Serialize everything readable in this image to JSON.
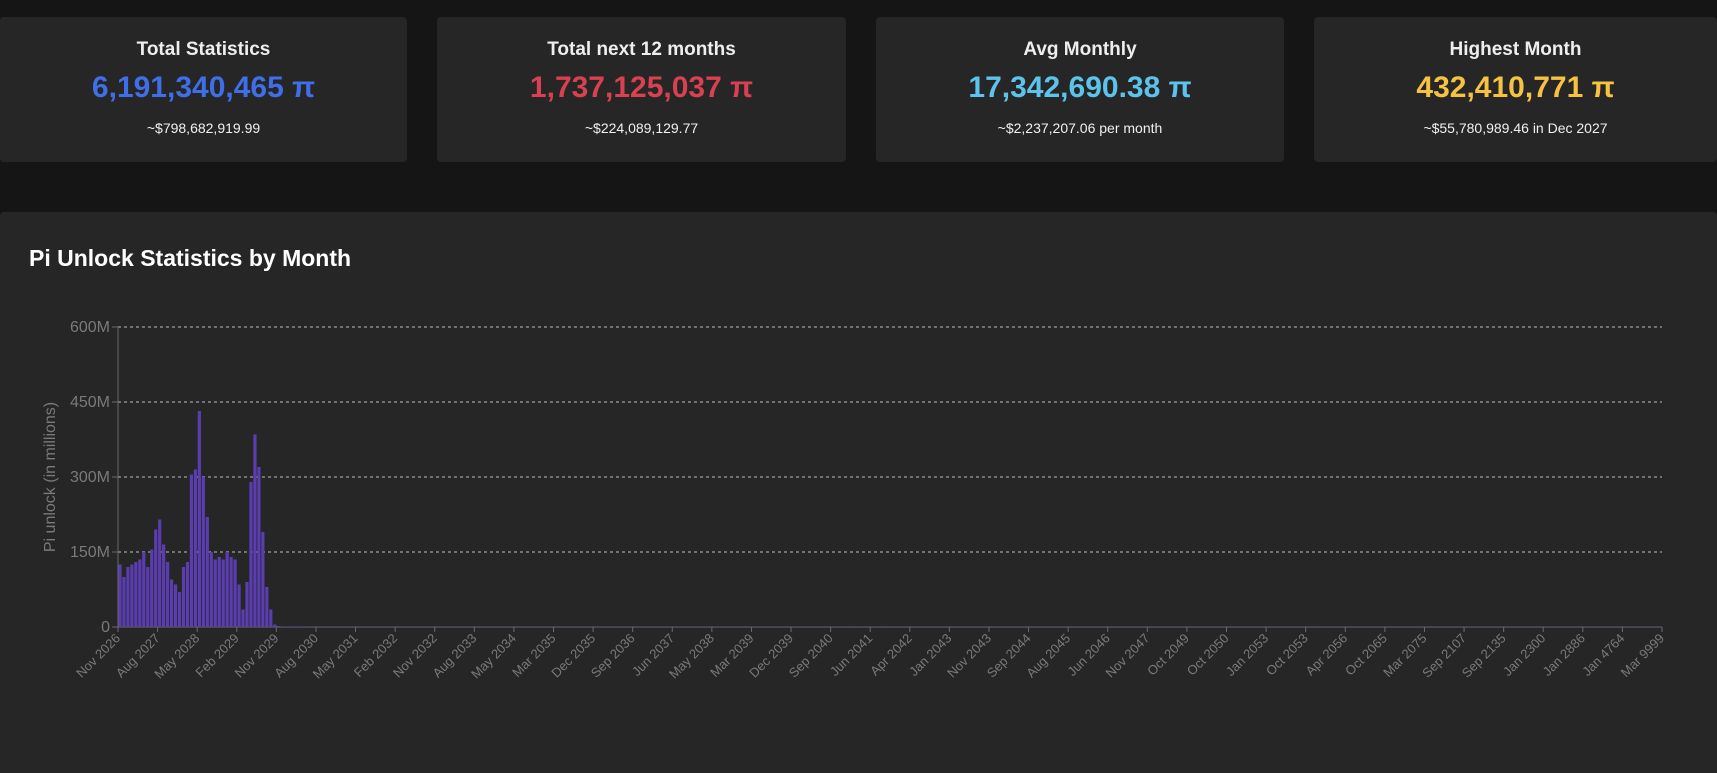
{
  "cards": [
    {
      "title": "Total Statistics",
      "value": "6,191,340,465 π",
      "sub": "~$798,682,919.99",
      "color": "#3f6fe8"
    },
    {
      "title": "Total next 12 months",
      "value": "1,737,125,037 π",
      "sub": "~$224,089,129.77",
      "color": "#d94050"
    },
    {
      "title": "Avg Monthly",
      "value": "17,342,690.38 π",
      "sub": "~$2,237,207.06 per month",
      "color": "#5cc4ec"
    },
    {
      "title": "Highest Month",
      "value": "432,410,771 π",
      "sub": "~$55,780,989.46 in Dec 2027",
      "color": "#f5c242"
    }
  ],
  "panel": {
    "title": "Pi Unlock Statistics by Month"
  },
  "chart_data": {
    "type": "bar",
    "ylabel": "Pi unlock (in millions)",
    "ylim": [
      0,
      600
    ],
    "yticks": [
      {
        "value": 0,
        "label": "0"
      },
      {
        "value": 150,
        "label": "150M"
      },
      {
        "value": 300,
        "label": "300M"
      },
      {
        "value": 450,
        "label": "450M"
      },
      {
        "value": 600,
        "label": "600M"
      }
    ],
    "grid": true,
    "bar_color": "#5b3db0",
    "x_tick_labels": [
      "Nov 2026",
      "Aug 2027",
      "May 2028",
      "Feb 2029",
      "Nov 2029",
      "Aug 2030",
      "May 2031",
      "Feb 2032",
      "Nov 2032",
      "Aug 2033",
      "May 2034",
      "Mar 2035",
      "Dec 2035",
      "Sep 2036",
      "Jun 2037",
      "May 2038",
      "Mar 2039",
      "Dec 2039",
      "Sep 2040",
      "Jun 2041",
      "Apr 2042",
      "Jan 2043",
      "Nov 2043",
      "Sep 2044",
      "Aug 2045",
      "Jun 2046",
      "Nov 2047",
      "Oct 2049",
      "Oct 2050",
      "Jan 2053",
      "Oct 2053",
      "Apr 2056",
      "Oct 2065",
      "Mar 2075",
      "Sep 2107",
      "Sep 2135",
      "Jan 2300",
      "Jan 2886",
      "Jan 4764",
      "Mar 9999"
    ],
    "values": [
      125,
      100,
      120,
      125,
      130,
      135,
      150,
      120,
      155,
      195,
      215,
      165,
      130,
      95,
      85,
      70,
      120,
      130,
      305,
      315,
      432,
      300,
      220,
      150,
      135,
      140,
      135,
      150,
      140,
      135,
      85,
      35,
      90,
      290,
      385,
      320,
      190,
      80,
      35,
      5,
      2,
      1,
      1,
      1,
      1,
      1,
      1,
      0.5,
      0.5,
      0.5,
      0.5,
      0.5,
      0.5,
      0.5,
      0.5,
      0.5,
      0.5,
      0.5,
      0.5,
      0.5,
      0.5,
      0.5,
      0.5,
      0.5,
      0.5,
      0.5,
      0.5,
      0.5,
      0.5,
      0.5,
      0.5,
      0.5,
      0.5,
      0.5,
      0.5,
      0.5,
      0.5,
      0.5,
      0.5,
      0.5,
      0.5,
      0.5,
      0.5,
      0.5,
      0.5,
      0.5,
      0.5,
      0.5,
      0.5,
      0.5,
      0.5,
      0.5,
      0.5,
      0.5,
      0.5,
      0.5,
      0.5,
      0.5,
      0.5,
      0.5,
      0.5,
      0.5,
      0.5,
      0.5,
      0.5,
      0.5,
      0.5,
      0.5,
      0.5,
      0.5,
      0.5,
      0.5,
      0.5,
      0.5,
      0.5,
      0.5,
      0.5,
      0.5,
      0.5,
      0.5,
      0.5,
      0.5,
      0.5,
      0.5,
      0.5,
      0.5,
      0.5,
      0.5,
      0.5,
      0.5,
      0.5,
      0.5,
      0.5,
      0.5,
      0.5,
      0.5,
      0.5,
      0.5,
      0.5,
      0.5,
      0.5,
      0.5,
      0.5,
      0.5,
      0.5,
      0.5,
      0.5,
      0.5,
      0.5,
      0.5,
      0.5,
      0.5,
      0.5,
      0.5,
      0.5,
      0.5,
      0.5,
      0.5,
      0.5,
      0.5,
      0.5,
      0.5,
      0.5,
      0.5,
      0.5,
      0.5,
      0.5,
      0.5,
      0.5,
      0.5,
      0.5,
      0.5,
      0.5,
      0.5,
      0.5,
      0.5,
      0.5,
      0.5,
      0.5,
      0.5,
      0.5,
      0.5,
      0.5,
      0.5,
      0.5,
      0.5,
      0.5,
      0.5,
      0.5,
      0.5,
      0.5,
      0.5,
      0.5,
      0.5,
      0.5,
      0.5,
      0.5,
      0.5,
      0.5,
      0.5,
      0.5,
      0.5,
      0.5,
      0.5,
      0.5,
      0.5,
      0.5,
      0.5,
      0.5,
      0.5,
      0.5,
      0.5,
      0.5,
      0.5,
      0.5,
      0.5,
      0.5,
      0.5,
      0.5,
      0.5,
      0.5,
      0.5,
      0.5,
      0.5,
      0.5,
      0.5,
      0.5,
      0.5,
      0.5,
      0.5,
      0.5,
      0.5,
      0.5,
      0.5,
      0.5,
      0.5,
      0.5,
      0.5,
      0.5,
      0.5,
      0.5,
      0.5,
      0.5,
      0.5,
      0.5,
      0.5,
      0.5,
      0.5,
      0.5,
      0.5,
      0.5,
      0.5,
      0.5,
      0.5,
      0.5,
      0.5,
      0.5,
      0.5,
      0.5,
      0.5,
      0.5,
      0.5,
      0.5,
      0.5,
      0.5,
      0.5,
      0.5,
      0.5,
      0.5,
      0.5,
      0.5,
      0.5,
      0.5,
      0.5,
      0.5,
      0.5,
      0.5,
      0.5,
      0.5,
      0.5,
      0.5,
      0.5,
      0.5,
      0.5,
      0.5,
      0.5,
      0.5,
      0.5,
      0.5,
      0.5,
      0.5,
      0.5,
      0.5,
      0.5,
      0.5,
      0.5,
      0.5,
      0.5,
      0.5,
      0.5,
      0.5,
      0.5,
      0.5,
      0.5,
      0.5,
      0.5,
      0.5,
      0.5,
      0.5,
      0.5,
      0.5,
      0.5,
      0.5,
      0.5,
      0.5,
      0.5,
      0.5,
      0.5,
      0.5,
      0.5,
      0.5,
      0.5,
      0.5,
      0.5,
      0.5,
      0.5,
      0.5,
      0.5,
      0.5,
      0.5,
      0.5,
      0.5,
      0.5,
      0.5,
      0.5,
      0.5,
      0.5,
      0.5,
      0.5,
      0.5,
      0.5,
      0.5,
      0.5,
      0.5,
      0.5,
      0.5,
      0.5,
      0.5,
      0.5,
      0.5,
      0.5,
      0.5,
      0.5,
      0.5,
      0.5,
      0.5,
      0.5,
      0.5,
      0.5,
      0.5,
      0.5,
      0.5,
      0.5,
      0.5,
      0.5,
      0.5,
      0.5,
      0.5,
      0.5,
      0.5,
      0.5,
      0.5,
      0.5,
      0.5,
      0.5,
      0.5,
      0.5,
      0.5,
      0.5,
      0.5,
      0.5,
      0.5,
      0.5,
      0.5,
      0.5,
      0.5,
      0.5,
      0.5,
      0.5
    ]
  }
}
